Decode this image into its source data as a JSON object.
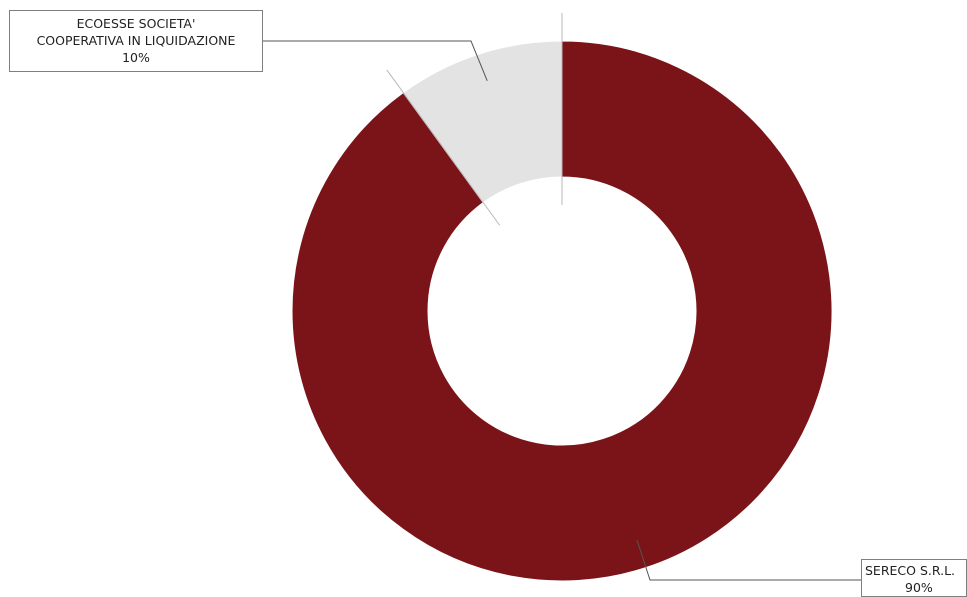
{
  "chart_data": {
    "type": "donut",
    "title": "",
    "slices": [
      {
        "name": "ECOESSE SOCIETA' COOPERATIVA IN LIQUIDAZIONE",
        "label_lines": [
          "ECOESSE SOCIETA'",
          "COOPERATIVA IN LIQUIDAZIONE"
        ],
        "percent_label": "10%",
        "value": 10,
        "color": "#e3e3e3"
      },
      {
        "name": "SERECO S.R.L.",
        "label_lines": [
          "SERECO S.R.L."
        ],
        "percent_label": "90%",
        "value": 90,
        "color": "#7b1418"
      }
    ],
    "legend": "none"
  }
}
